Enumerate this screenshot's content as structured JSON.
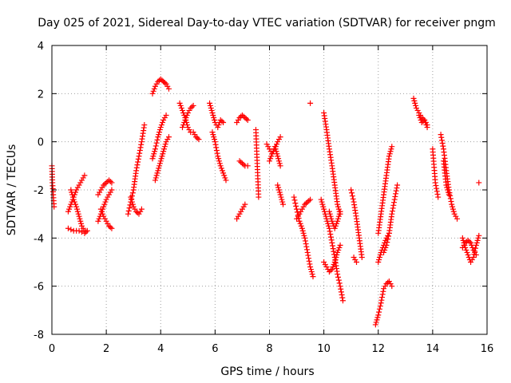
{
  "chart_data": {
    "type": "scatter",
    "title": "Day 025 of 2021, Sidereal Day-to-day VTEC variation (SDTVAR) for receiver pngm",
    "xlabel": "GPS time / hours",
    "ylabel": "SDTVAR / TECUs",
    "xlim": [
      0,
      16
    ],
    "ylim": [
      -8,
      4
    ],
    "xticks": [
      "0",
      "2",
      "4",
      "6",
      "8",
      "10",
      "12",
      "14",
      "16"
    ],
    "yticks": [
      "4",
      "2",
      "0",
      "-2",
      "-4",
      "-6",
      "-8"
    ],
    "grid": true,
    "marker": "+",
    "color": "#ff0000",
    "segments": [
      [
        [
          0.0,
          -1.0
        ],
        [
          0.02,
          -1.7
        ],
        [
          0.05,
          -2.2
        ],
        [
          0.08,
          -2.7
        ]
      ],
      [
        [
          0.6,
          -2.9
        ],
        [
          0.7,
          -2.6
        ],
        [
          0.8,
          -2.3
        ],
        [
          0.9,
          -2.0
        ],
        [
          1.0,
          -1.8
        ],
        [
          1.1,
          -1.6
        ],
        [
          1.2,
          -1.4
        ]
      ],
      [
        [
          0.7,
          -2.0
        ],
        [
          0.8,
          -2.4
        ],
        [
          0.9,
          -2.7
        ],
        [
          1.0,
          -3.1
        ],
        [
          1.1,
          -3.5
        ],
        [
          1.2,
          -3.7
        ]
      ],
      [
        [
          0.6,
          -3.6
        ],
        [
          0.8,
          -3.7
        ],
        [
          1.0,
          -3.7
        ],
        [
          1.2,
          -3.8
        ],
        [
          1.3,
          -3.7
        ]
      ],
      [
        [
          1.7,
          -2.2
        ],
        [
          1.8,
          -2.0
        ],
        [
          1.9,
          -1.8
        ],
        [
          2.0,
          -1.7
        ],
        [
          2.1,
          -1.6
        ],
        [
          2.2,
          -1.7
        ]
      ],
      [
        [
          1.7,
          -3.3
        ],
        [
          1.8,
          -3.0
        ],
        [
          1.9,
          -2.7
        ],
        [
          2.0,
          -2.4
        ],
        [
          2.1,
          -2.2
        ],
        [
          2.2,
          -2.0
        ]
      ],
      [
        [
          1.8,
          -2.8
        ],
        [
          1.9,
          -3.1
        ],
        [
          2.0,
          -3.3
        ],
        [
          2.1,
          -3.5
        ],
        [
          2.2,
          -3.6
        ]
      ],
      [
        [
          2.8,
          -3.0
        ],
        [
          2.9,
          -2.5
        ],
        [
          3.0,
          -2.0
        ],
        [
          3.1,
          -1.2
        ],
        [
          3.2,
          -0.6
        ],
        [
          3.3,
          0.0
        ],
        [
          3.4,
          0.7
        ]
      ],
      [
        [
          2.9,
          -2.3
        ],
        [
          3.0,
          -2.7
        ],
        [
          3.1,
          -2.9
        ],
        [
          3.2,
          -3.0
        ],
        [
          3.3,
          -2.8
        ]
      ],
      [
        [
          3.7,
          2.0
        ],
        [
          3.8,
          2.3
        ],
        [
          3.9,
          2.5
        ],
        [
          4.0,
          2.6
        ],
        [
          4.1,
          2.5
        ],
        [
          4.2,
          2.4
        ],
        [
          4.3,
          2.2
        ]
      ],
      [
        [
          3.7,
          -0.7
        ],
        [
          3.8,
          -0.3
        ],
        [
          3.9,
          0.2
        ],
        [
          4.0,
          0.6
        ],
        [
          4.1,
          0.9
        ],
        [
          4.2,
          1.1
        ]
      ],
      [
        [
          3.8,
          -1.6
        ],
        [
          3.9,
          -1.2
        ],
        [
          4.0,
          -0.8
        ],
        [
          4.1,
          -0.4
        ],
        [
          4.2,
          0.0
        ],
        [
          4.3,
          0.2
        ]
      ],
      [
        [
          4.7,
          1.6
        ],
        [
          4.8,
          1.3
        ],
        [
          4.9,
          1.0
        ],
        [
          5.0,
          0.6
        ],
        [
          5.1,
          0.4
        ]
      ],
      [
        [
          4.8,
          0.6
        ],
        [
          4.9,
          0.9
        ],
        [
          5.0,
          1.2
        ],
        [
          5.1,
          1.4
        ],
        [
          5.2,
          1.5
        ]
      ],
      [
        [
          5.2,
          0.4
        ],
        [
          5.3,
          0.2
        ],
        [
          5.4,
          0.1
        ]
      ],
      [
        [
          5.8,
          1.6
        ],
        [
          5.9,
          1.2
        ],
        [
          6.0,
          0.8
        ],
        [
          6.1,
          0.6
        ],
        [
          6.2,
          0.9
        ],
        [
          6.3,
          0.8
        ]
      ],
      [
        [
          5.9,
          0.4
        ],
        [
          6.0,
          0.0
        ],
        [
          6.1,
          -0.6
        ],
        [
          6.2,
          -1.0
        ],
        [
          6.3,
          -1.3
        ],
        [
          6.4,
          -1.6
        ]
      ],
      [
        [
          6.8,
          -3.2
        ],
        [
          6.9,
          -3.0
        ],
        [
          7.0,
          -2.8
        ],
        [
          7.1,
          -2.6
        ]
      ],
      [
        [
          6.8,
          0.8
        ],
        [
          6.9,
          1.0
        ],
        [
          7.0,
          1.1
        ],
        [
          7.1,
          1.0
        ],
        [
          7.2,
          0.9
        ]
      ],
      [
        [
          6.9,
          -0.8
        ],
        [
          7.0,
          -0.9
        ],
        [
          7.1,
          -1.0
        ],
        [
          7.2,
          -1.0
        ]
      ],
      [
        [
          7.5,
          0.5
        ],
        [
          7.6,
          -2.3
        ]
      ],
      [
        [
          7.9,
          -0.1
        ],
        [
          8.0,
          -0.3
        ],
        [
          8.1,
          -0.5
        ],
        [
          8.2,
          -0.3
        ],
        [
          8.3,
          0.0
        ],
        [
          8.4,
          0.2
        ]
      ],
      [
        [
          8.0,
          -0.8
        ],
        [
          8.1,
          -0.5
        ],
        [
          8.2,
          -0.2
        ],
        [
          8.3,
          -0.6
        ],
        [
          8.4,
          -1.0
        ]
      ],
      [
        [
          8.3,
          -1.8
        ],
        [
          8.4,
          -2.2
        ],
        [
          8.5,
          -2.6
        ]
      ],
      [
        [
          8.9,
          -2.3
        ],
        [
          9.0,
          -2.8
        ],
        [
          9.1,
          -3.3
        ],
        [
          9.2,
          -3.6
        ],
        [
          9.3,
          -4.0
        ],
        [
          9.4,
          -4.6
        ],
        [
          9.5,
          -5.2
        ],
        [
          9.6,
          -5.6
        ]
      ],
      [
        [
          9.0,
          -3.2
        ],
        [
          9.1,
          -3.0
        ],
        [
          9.2,
          -2.8
        ],
        [
          9.3,
          -2.6
        ],
        [
          9.4,
          -2.5
        ],
        [
          9.5,
          -2.4
        ]
      ],
      [
        [
          9.5,
          1.6
        ]
      ],
      [
        [
          10.0,
          1.2
        ],
        [
          10.1,
          0.5
        ],
        [
          10.2,
          -0.3
        ],
        [
          10.3,
          -1.0
        ],
        [
          10.4,
          -1.8
        ],
        [
          10.5,
          -2.6
        ],
        [
          10.6,
          -3.0
        ]
      ],
      [
        [
          9.9,
          -2.4
        ],
        [
          10.0,
          -2.8
        ],
        [
          10.1,
          -3.2
        ],
        [
          10.2,
          -3.6
        ],
        [
          10.3,
          -4.2
        ],
        [
          10.4,
          -4.8
        ],
        [
          10.5,
          -5.5
        ],
        [
          10.6,
          -6.0
        ],
        [
          10.7,
          -6.6
        ]
      ],
      [
        [
          10.0,
          -5.0
        ],
        [
          10.1,
          -5.2
        ],
        [
          10.2,
          -5.4
        ],
        [
          10.3,
          -5.3
        ],
        [
          10.4,
          -5.0
        ],
        [
          10.5,
          -4.6
        ],
        [
          10.6,
          -4.3
        ]
      ],
      [
        [
          10.2,
          -2.9
        ],
        [
          10.3,
          -3.3
        ],
        [
          10.4,
          -3.6
        ],
        [
          10.5,
          -3.3
        ],
        [
          10.6,
          -2.9
        ]
      ],
      [
        [
          11.0,
          -2.0
        ],
        [
          11.1,
          -2.5
        ],
        [
          11.2,
          -3.2
        ],
        [
          11.3,
          -4.0
        ],
        [
          11.4,
          -4.8
        ]
      ],
      [
        [
          11.1,
          -4.8
        ],
        [
          11.2,
          -5.0
        ]
      ],
      [
        [
          11.9,
          -7.6
        ],
        [
          12.0,
          -7.2
        ],
        [
          12.1,
          -6.7
        ],
        [
          12.2,
          -6.1
        ],
        [
          12.3,
          -5.9
        ],
        [
          12.4,
          -5.8
        ],
        [
          12.5,
          -6.0
        ]
      ],
      [
        [
          12.0,
          -5.0
        ],
        [
          12.1,
          -4.6
        ],
        [
          12.2,
          -4.3
        ],
        [
          12.3,
          -4.0
        ],
        [
          12.4,
          -3.8
        ]
      ],
      [
        [
          12.0,
          -3.8
        ],
        [
          12.1,
          -3.0
        ],
        [
          12.2,
          -2.2
        ],
        [
          12.3,
          -1.4
        ],
        [
          12.4,
          -0.6
        ],
        [
          12.5,
          -0.2
        ]
      ],
      [
        [
          12.2,
          -4.6
        ],
        [
          12.3,
          -4.3
        ],
        [
          12.4,
          -3.8
        ],
        [
          12.5,
          -3.0
        ],
        [
          12.6,
          -2.4
        ],
        [
          12.7,
          -1.8
        ]
      ],
      [
        [
          13.3,
          1.8
        ],
        [
          13.4,
          1.4
        ],
        [
          13.5,
          1.2
        ],
        [
          13.6,
          1.0
        ],
        [
          13.7,
          0.9
        ],
        [
          13.8,
          0.6
        ]
      ],
      [
        [
          13.5,
          1.1
        ],
        [
          13.6,
          0.8
        ],
        [
          13.7,
          0.9
        ],
        [
          13.8,
          0.7
        ]
      ],
      [
        [
          14.0,
          -0.3
        ],
        [
          14.1,
          -1.7
        ],
        [
          14.2,
          -2.3
        ]
      ],
      [
        [
          14.3,
          0.3
        ],
        [
          14.4,
          -0.3
        ],
        [
          14.5,
          -1.2
        ],
        [
          14.6,
          -2.0
        ],
        [
          14.7,
          -2.6
        ],
        [
          14.8,
          -3.0
        ],
        [
          14.9,
          -3.2
        ]
      ],
      [
        [
          14.4,
          -0.8
        ],
        [
          14.5,
          -1.8
        ],
        [
          14.6,
          -2.2
        ]
      ],
      [
        [
          15.7,
          -1.7
        ]
      ],
      [
        [
          15.1,
          -4.0
        ],
        [
          15.2,
          -4.4
        ],
        [
          15.3,
          -4.7
        ],
        [
          15.4,
          -5.0
        ],
        [
          15.5,
          -4.8
        ],
        [
          15.6,
          -4.3
        ],
        [
          15.7,
          -3.9
        ]
      ],
      [
        [
          15.1,
          -4.4
        ],
        [
          15.2,
          -4.2
        ],
        [
          15.3,
          -4.1
        ],
        [
          15.4,
          -4.2
        ],
        [
          15.5,
          -4.5
        ],
        [
          15.6,
          -4.7
        ]
      ]
    ]
  }
}
